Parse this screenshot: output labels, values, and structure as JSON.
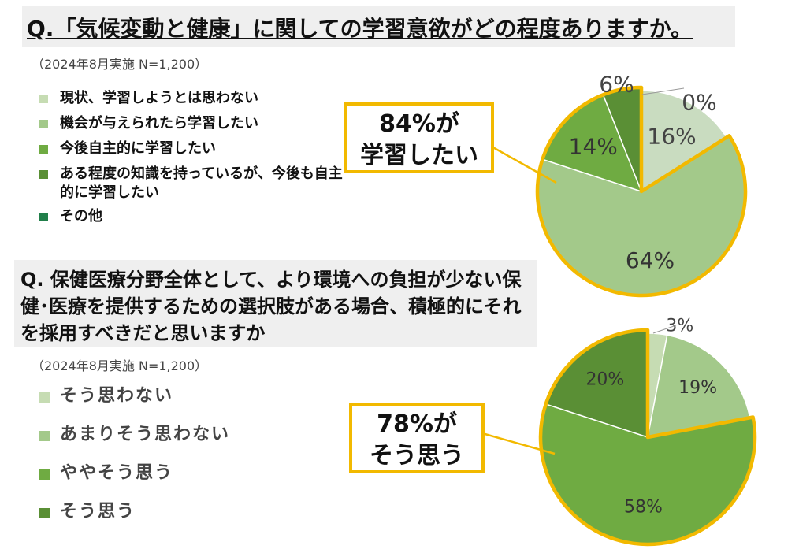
{
  "q1": {
    "title": "Q.「気候変動と健康」に関しての学習意欲がどの程度ありますか。",
    "survey_note": "（2024年8月実施 N=1,200）",
    "callout_line1": "84%が",
    "callout_line2": "学習したい"
  },
  "q2": {
    "title": "Q. 保健医療分野全体として、より環境への負担が少ない保健･医療を提供するための選択肢がある場合、積極的にそれを採用すべきだと思いますか",
    "survey_note": "（2024年8月実施 N=1,200）",
    "callout_line1": "78%が",
    "callout_line2": "そう思う"
  },
  "colors": {
    "highlight": "#f2b900",
    "leader_line": "#f2b900"
  },
  "chart_data": [
    {
      "type": "pie",
      "title": "",
      "legend_position": "left",
      "series": [
        {
          "name": "現状、学習しようとは思わない",
          "value": 0,
          "label": "0%",
          "color": "#c6dcb3"
        },
        {
          "name": "機会が与えられたら学習したい",
          "value": 64,
          "label": "64%",
          "color": "#a3c98a"
        },
        {
          "name": "今後自主的に学習したい",
          "value": 14,
          "label": "14%",
          "color": "#6fab42"
        },
        {
          "name": "ある程度の知識を持っているが、今後も自主的に学習したい",
          "value": 6,
          "label": "6%",
          "color": "#5a8f35"
        },
        {
          "name": "その他",
          "value": 16,
          "label": "16%",
          "color": "#c9dcc0",
          "legend_color": "#217f4a"
        }
      ],
      "highlighted": [
        "機会が与えられたら学習したい",
        "今後自主的に学習したい",
        "ある程度の知識を持っているが、今後も自主的に学習したい"
      ]
    },
    {
      "type": "pie",
      "title": "",
      "legend_position": "left",
      "series": [
        {
          "name": "そう思わない",
          "value": 3,
          "label": "3%",
          "color": "#c6dcb3"
        },
        {
          "name": "あまりそう思わない",
          "value": 19,
          "label": "19%",
          "color": "#a3c98a"
        },
        {
          "name": "ややそう思う",
          "value": 58,
          "label": "58%",
          "color": "#6fab42"
        },
        {
          "name": "そう思う",
          "value": 20,
          "label": "20%",
          "color": "#5a8f35"
        }
      ],
      "highlighted": [
        "ややそう思う",
        "そう思う"
      ]
    }
  ]
}
